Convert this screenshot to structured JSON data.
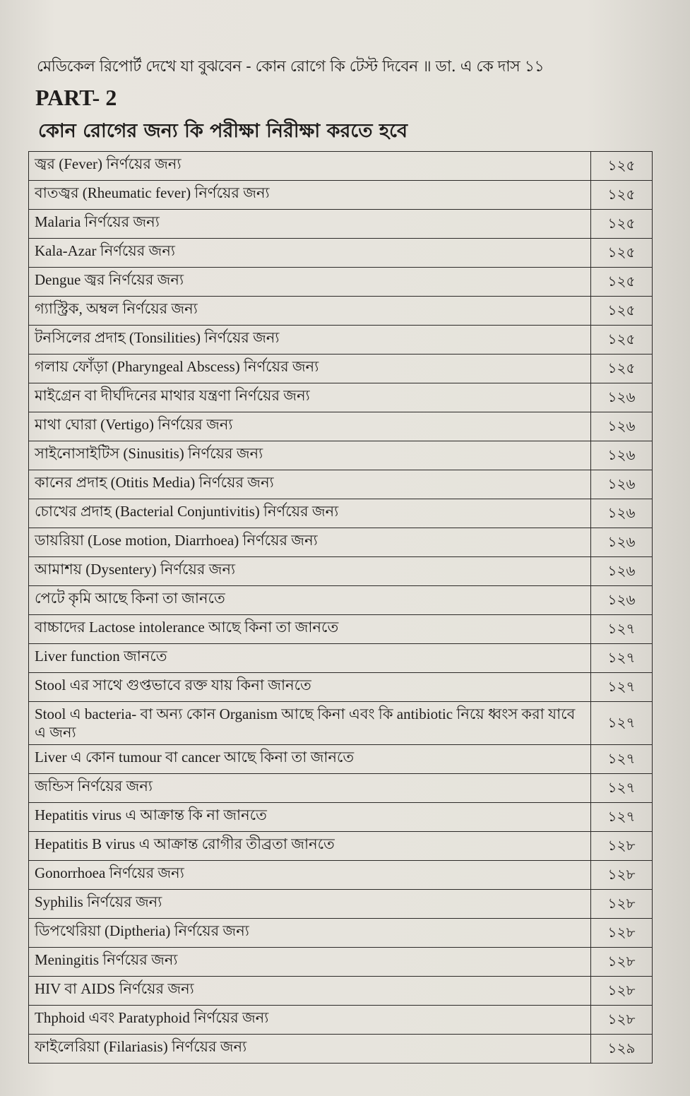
{
  "running_head": "মেডিকেল রিপোর্ট দেখে যা বুঝবেন - কোন রোগে কি টেস্ট দিবেন ॥ ডা. এ কে দাস ১১",
  "part_title": "PART- 2",
  "subtitle": "কোন রোগের জন্য কি পরীক্ষা নিরীক্ষা করতে হবে",
  "rows": [
    {
      "topic": "জ্বর (Fever) নির্ণয়ের জন্য",
      "page": "১২৫"
    },
    {
      "topic": "বাতজ্বর (Rheumatic fever) নির্ণয়ের জন্য",
      "page": "১২৫"
    },
    {
      "topic": "Malaria নির্ণয়ের জন্য",
      "page": "১২৫"
    },
    {
      "topic": "Kala-Azar নির্ণয়ের জন্য",
      "page": "১২৫"
    },
    {
      "topic": "Dengue জ্বর নির্ণয়ের জন্য",
      "page": "১২৫"
    },
    {
      "topic": "গ্যাস্ট্রিক, অম্বল নির্ণয়ের জন্য",
      "page": "১২৫"
    },
    {
      "topic": "টনসিলের প্রদাহ (Tonsilities) নির্ণয়ের জন্য",
      "page": "১২৫"
    },
    {
      "topic": "গলায় ফোঁড়া (Pharyngeal Abscess) নির্ণয়ের জন্য",
      "page": "১২৫"
    },
    {
      "topic": "মাইগ্রেন বা দীর্ঘদিনের মাথার যন্ত্রণা নির্ণয়ের জন্য",
      "page": "১২৬"
    },
    {
      "topic": "মাথা ঘোরা (Vertigo) নির্ণয়ের জন্য",
      "page": "১২৬"
    },
    {
      "topic": "সাইনোসাইটিস (Sinusitis) নির্ণয়ের জন্য",
      "page": "১২৬"
    },
    {
      "topic": "কানের প্রদাহ (Otitis Media) নির্ণয়ের জন্য",
      "page": "১২৬"
    },
    {
      "topic": "চোখের প্রদাহ (Bacterial Conjuntivitis) নির্ণয়ের জন্য",
      "page": "১২৬"
    },
    {
      "topic": "ডায়রিয়া (Lose motion, Diarrhoea) নির্ণয়ের জন্য",
      "page": "১২৬"
    },
    {
      "topic": "আমাশয় (Dysentery) নির্ণয়ের জন্য",
      "page": "১২৬"
    },
    {
      "topic": "পেটে কৃমি আছে কিনা তা জানতে",
      "page": "১২৬"
    },
    {
      "topic": "বাচ্চাদের Lactose intolerance আছে কিনা তা জানতে",
      "page": "১২৭"
    },
    {
      "topic": "Liver function জানতে",
      "page": "১২৭"
    },
    {
      "topic": "Stool এর সাথে গুপ্তভাবে রক্ত যায় কিনা জানতে",
      "page": "১২৭"
    },
    {
      "topic": "Stool এ bacteria- বা অন্য কোন Organism আছে কিনা এবং কি antibiotic নিয়ে ধ্বংস করা যাবে এ জন্য",
      "page": "১২৭"
    },
    {
      "topic": "Liver এ কোন tumour বা cancer আছে কিনা তা জানতে",
      "page": "১২৭"
    },
    {
      "topic": "জন্ডিস নির্ণয়ের জন্য",
      "page": "১২৭"
    },
    {
      "topic": "Hepatitis virus এ আক্রান্ত কি না জানতে",
      "page": "১২৭"
    },
    {
      "topic": "Hepatitis B virus এ আক্রান্ত রোগীর তীব্রতা জানতে",
      "page": "১২৮"
    },
    {
      "topic": "Gonorrhoea নির্ণয়ের জন্য",
      "page": "১২৮"
    },
    {
      "topic": "Syphilis নির্ণয়ের জন্য",
      "page": "১২৮"
    },
    {
      "topic": "ডিপথেরিয়া (Diptheria) নির্ণয়ের জন্য",
      "page": "১২৮"
    },
    {
      "topic": "Meningitis নির্ণয়ের জন্য",
      "page": "১২৮"
    },
    {
      "topic": "HIV বা AIDS নির্ণয়ের জন্য",
      "page": "১২৮"
    },
    {
      "topic": "Thphoid এবং Paratyphoid নির্ণয়ের জন্য",
      "page": "১২৮"
    },
    {
      "topic": "ফাইলেরিয়া (Filariasis) নির্ণয়ের জন্য",
      "page": "১২৯"
    }
  ]
}
